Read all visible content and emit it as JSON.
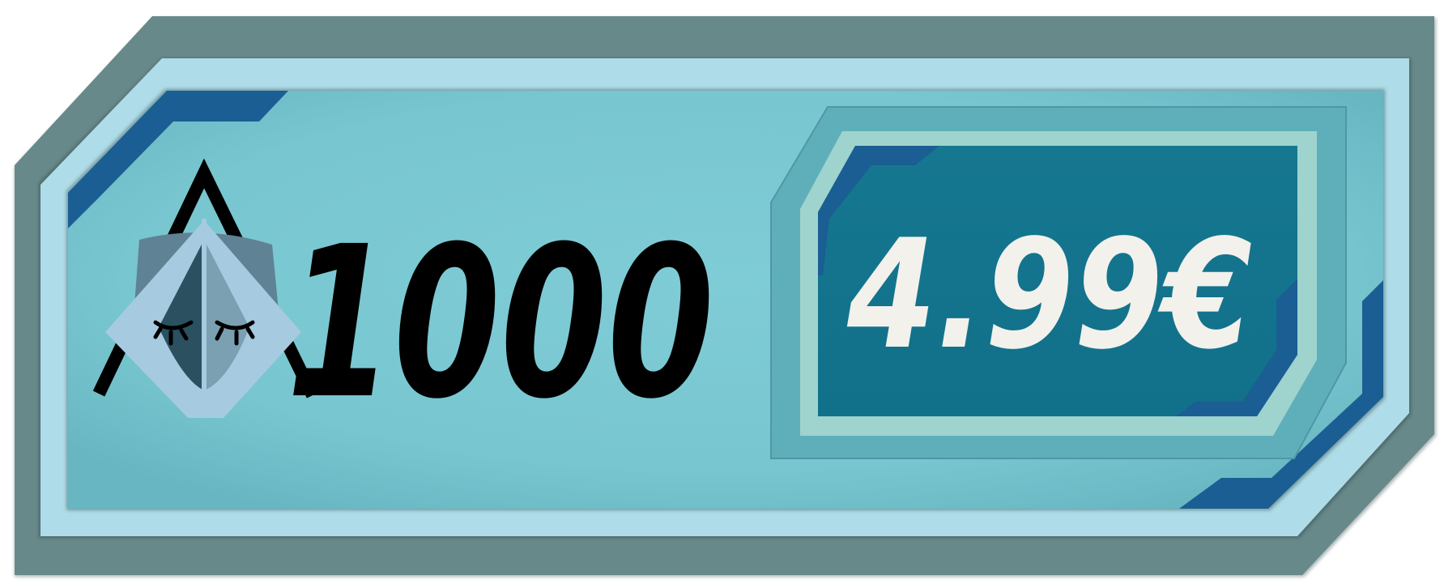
{
  "offer": {
    "amount": "1000",
    "price": "4.99€",
    "currency_icon": "hooded-creature-icon",
    "buy_button": "purchase-price-button"
  },
  "colors": {
    "outer_frame": "#68898A",
    "inner_frame": "#AEDCE8",
    "panel_fill": "#7BC9D3",
    "panel_edge": "#5FB0BC",
    "accent_blue": "#1B5E93",
    "price_frame_outer": "#6FB6C0",
    "price_frame_light": "#9FD3CE",
    "price_fill": "#13728B",
    "amount_text": "#000000",
    "price_text": "#F2F1EC",
    "icon_light": "#A6CAE0",
    "icon_mid": "#7AA0B2",
    "icon_dark": "#2B5161",
    "icon_hood": "#5F8294"
  }
}
